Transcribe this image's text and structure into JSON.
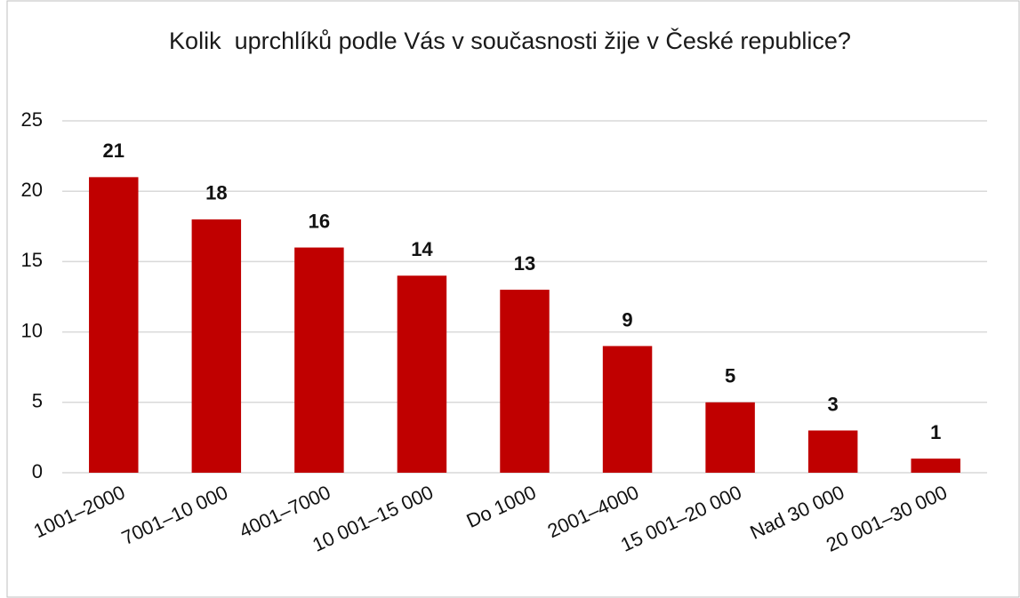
{
  "chart_data": {
    "type": "bar",
    "title": "Kolik  uprchlíků podle Vás v současnosti žije v České republice?",
    "categories": [
      "1001–2000",
      "7001–10 000",
      "4001–7000",
      "10 001–15 000",
      "Do 1000",
      "2001–4000",
      "15 001–20 000",
      "Nad 30 000",
      "20 001–30 000"
    ],
    "values": [
      21,
      18,
      16,
      14,
      13,
      9,
      5,
      3,
      1
    ],
    "color": "#c00000",
    "ylim": [
      0,
      25
    ],
    "yticks": [
      0,
      5,
      10,
      15,
      20,
      25
    ],
    "grid": true
  }
}
